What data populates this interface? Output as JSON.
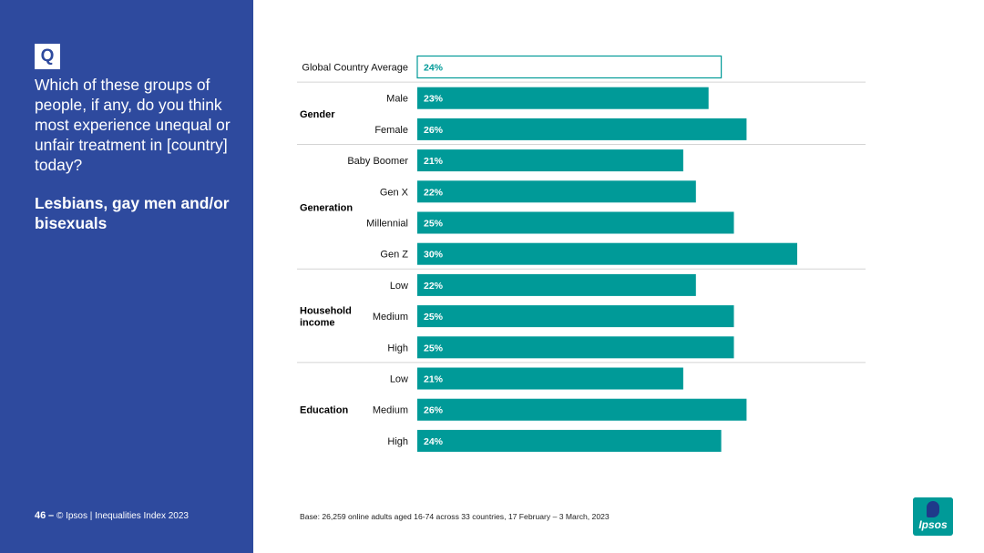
{
  "sidebar": {
    "q_label": "Q",
    "question": "Which of these groups of people, if any, do you think most experience unequal or unfair treatment in [country] today?",
    "subject": "Lesbians, gay men and/or bisexuals",
    "page_number": "46",
    "page_sep": "–",
    "footer": "© Ipsos | Inequalities Index 2023"
  },
  "base_note": "Base: 26,259 online adults aged 16-74 across 33 countries, 17 February – 3 March, 2023",
  "logo": {
    "text": "Ipsos"
  },
  "colors": {
    "panel": "#2e4a9e",
    "bar": "#009a98",
    "highlight_bar_fill": "#ffffff",
    "highlight_bar_stroke": "#009a98",
    "separator": "#d4d4d4"
  },
  "chart_data": {
    "type": "bar",
    "orientation": "horizontal",
    "unit": "%",
    "xlim": [
      0,
      30
    ],
    "categories": [
      "Global Country Average",
      "Male",
      "Female",
      "Baby Boomer",
      "Gen X",
      "Millennial",
      "Gen Z",
      "Low",
      "Medium",
      "High",
      "Low",
      "Medium",
      "High"
    ],
    "values": [
      24,
      23,
      26,
      21,
      22,
      25,
      30,
      22,
      25,
      25,
      21,
      26,
      24
    ],
    "value_labels": [
      "24%",
      "23%",
      "26%",
      "21%",
      "22%",
      "25%",
      "30%",
      "22%",
      "25%",
      "25%",
      "21%",
      "26%",
      "24%"
    ],
    "highlight_index": 0,
    "groups": [
      {
        "name": "",
        "start": 0,
        "end": 0
      },
      {
        "name": "Gender",
        "start": 1,
        "end": 2
      },
      {
        "name": "Generation",
        "start": 3,
        "end": 6
      },
      {
        "name": "Household income",
        "lines": [
          "Household",
          "income"
        ],
        "start": 7,
        "end": 9
      },
      {
        "name": "Education",
        "start": 10,
        "end": 12
      }
    ]
  }
}
